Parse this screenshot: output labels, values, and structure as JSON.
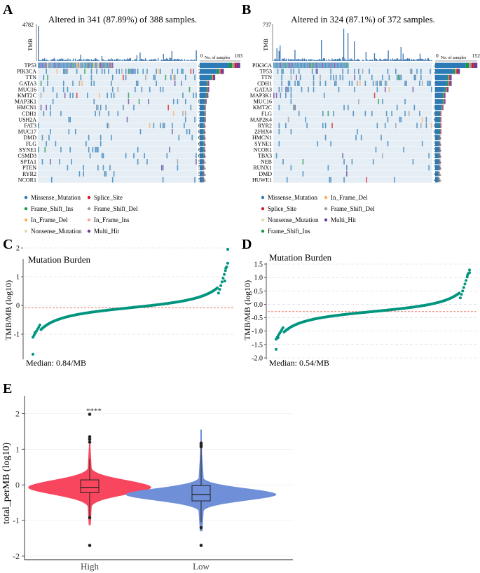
{
  "colors": {
    "missense": "#2c7bb6",
    "splice": "#d7191c",
    "frame_shift_ins": "#1a9641",
    "frame_shift_del": "#9b9b9b",
    "in_frame_del": "#fdae61",
    "in_frame_ins": "#f4a6a6",
    "nonsense": "#e8d9a8",
    "multi_hit": "#6a3d9a",
    "tmb_bar": "#3a75b0",
    "grid_bg": "#e6eef5",
    "teal": "#00957f",
    "median_line": "#e8634a",
    "high": "#f8465e",
    "low": "#6f8fd8"
  },
  "chart_data": [
    {
      "panel": "A",
      "type": "oncoplot",
      "title": "Altered in 341 (87.89%) of 388 samples.",
      "tmb_label": "TMB",
      "tmb_max": "4782",
      "samples_axis_label": "No. of samples",
      "samples_axis_min": "0",
      "samples_axis_max": "183",
      "samples_max": 183,
      "genes": [
        "TP53",
        "PIK3CA",
        "TTN",
        "GATA3",
        "MUC16",
        "KMT2C",
        "MAP3K1",
        "HMCN1",
        "CDH1",
        "USH2A",
        "FAT3",
        "MUC17",
        "DMD",
        "FLG",
        "SYNE1",
        "CSMD3",
        "SPTA1",
        "PTEN",
        "RYR2",
        "NCOR1"
      ],
      "percents": [
        "47%",
        "28%",
        "18%",
        "11%",
        "11%",
        "10%",
        "8%",
        "7%",
        "7%",
        "7%",
        "6%",
        "6%",
        "6%",
        "6%",
        "6%",
        "6%",
        "5%",
        "5%",
        "5%",
        "5%"
      ],
      "legend": [
        "Missense_Mutation",
        "Splice_Site",
        "Frame_Shift_Ins",
        "Frame_Shift_Del",
        "In_Frame_Del",
        "In_Frame_Ins",
        "Nonsense_Mutation",
        "Multi_Hit"
      ]
    },
    {
      "panel": "B",
      "type": "oncoplot",
      "title": "Altered in 324 (87.1%) of 372 samples.",
      "tmb_label": "TMB",
      "tmb_max": "737",
      "samples_axis_label": "No. of samples",
      "samples_axis_min": "0",
      "samples_axis_max": "152",
      "samples_max": 152,
      "genes": [
        "PIK3CA",
        "TP53",
        "TTN",
        "CDH1",
        "GATA3",
        "MAP3K1",
        "MUC16",
        "KMT2C",
        "FLG",
        "MAP2K4",
        "RYR2",
        "ZFHX4",
        "HMCN1",
        "SYNE1",
        "NCOR1",
        "TBX3",
        "NEB",
        "RUNX1",
        "DMD",
        "HUWE1"
      ],
      "percents": [
        "41%",
        "24%",
        "16%",
        "16%",
        "13%",
        "10%",
        "10%",
        "8%",
        "6%",
        "6%",
        "6%",
        "6%",
        "5%",
        "5%",
        "5%",
        "5%",
        "5%",
        "5%",
        "4%",
        "4%"
      ],
      "legend": [
        "Missense_Mutation",
        "In_Frame_Del",
        "Splice_Site",
        "Frame_Shift_Del",
        "Nonsense_Mutation",
        "Multi_Hit",
        "Frame_Shift_Ins"
      ]
    },
    {
      "panel": "C",
      "type": "scatter",
      "title": "Mutation Burden",
      "ylabel": "TMB/MB (log10)",
      "ylim": [
        -2,
        2
      ],
      "yticks": [
        "-1",
        "0",
        "1",
        "2"
      ],
      "median_log10": -0.08,
      "median_text": "Median: 0.84/MB"
    },
    {
      "panel": "D",
      "type": "scatter",
      "title": "Mutation Burden",
      "ylabel": "TMB/MB (log10)",
      "ylim": [
        -2.0,
        1.5
      ],
      "yticks": [
        "-2.0",
        "-1.5",
        "-1.0",
        "-0.5",
        "0.0",
        "0.5",
        "1.0",
        "1.5"
      ],
      "median_log10": -0.27,
      "median_text": "Median: 0.54/MB"
    },
    {
      "panel": "E",
      "type": "violin",
      "ylabel": "total_perMB (log10)",
      "ylim": [
        -2.1,
        2.5
      ],
      "yticks": [
        "-2",
        "-1",
        "0",
        "1",
        "2"
      ],
      "significance": "****",
      "groups": [
        {
          "name": "High",
          "median": -0.07,
          "q1": -0.22,
          "q3": 0.14,
          "whisker_low": -0.88,
          "whisker_high": 0.72,
          "outliers": [
            1.98,
            1.35,
            1.28,
            1.2,
            -0.92,
            -1.7
          ]
        },
        {
          "name": "Low",
          "median": -0.27,
          "q1": -0.45,
          "q3": -0.02,
          "whisker_low": -1.05,
          "whisker_high": 1.1,
          "outliers": [
            1.17,
            1.12,
            1.07,
            -1.2,
            -1.7
          ]
        }
      ]
    }
  ],
  "panel_letters": [
    "A",
    "B",
    "C",
    "D",
    "E"
  ]
}
